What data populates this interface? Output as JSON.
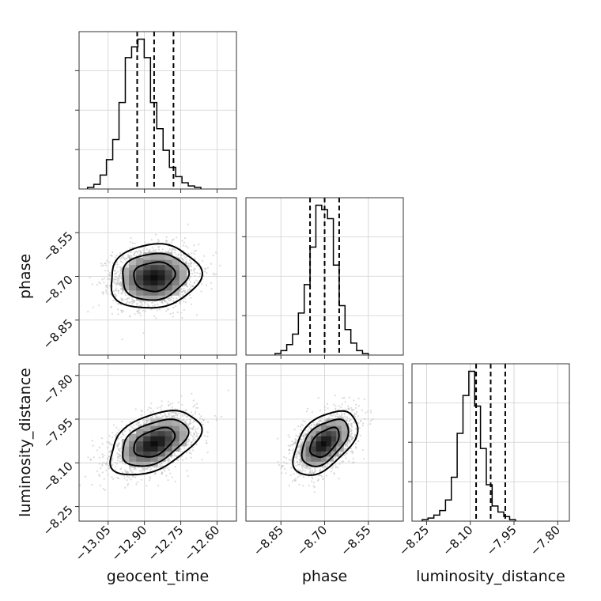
{
  "chart_data": {
    "type": "corner",
    "grid": true,
    "parameters": [
      {
        "name": "geocent_time",
        "axis_label": "geocent_time",
        "range": [
          -13.17,
          -12.52
        ],
        "ticks": [
          -13.05,
          -12.9,
          -12.75,
          -12.6
        ],
        "tick_labels": [
          "−13.05",
          "−12.90",
          "−12.75",
          "−12.60"
        ],
        "quantiles": [
          -12.93,
          -12.86,
          -12.78
        ],
        "histogram": {
          "bins_start": -13.135,
          "bin_width": 0.026,
          "counts": [
            1,
            3,
            9,
            19,
            32,
            56,
            85,
            92,
            97,
            85,
            56,
            39,
            25,
            14,
            8,
            4,
            2,
            1
          ]
        }
      },
      {
        "name": "phase",
        "axis_label": "phase",
        "range": [
          -8.97,
          -8.43
        ],
        "ticks": [
          -8.85,
          -8.7,
          -8.55
        ],
        "tick_labels": [
          "−8.85",
          "−8.70",
          "−8.55"
        ],
        "quantiles": [
          -8.75,
          -8.7,
          -8.65
        ],
        "histogram": {
          "bins_start": -8.87,
          "bin_width": 0.02,
          "counts": [
            1,
            3,
            7,
            14,
            28,
            47,
            72,
            100,
            97,
            91,
            60,
            33,
            17,
            8,
            3,
            1
          ]
        }
      },
      {
        "name": "luminosity_distance",
        "axis_label": "luminosity_distance",
        "range": [
          -8.3,
          -7.76
        ],
        "ticks": [
          -8.25,
          -8.1,
          -7.95,
          -7.8
        ],
        "tick_labels": [
          "−8.25",
          "−8.10",
          "−7.95",
          "−7.80"
        ],
        "quantiles": [
          -8.08,
          -8.03,
          -7.98
        ],
        "histogram": {
          "bins_start": -8.265,
          "bin_width": 0.02,
          "counts": [
            1,
            2,
            4,
            7,
            14,
            29,
            58,
            83,
            99,
            76,
            48,
            24,
            10,
            6,
            3,
            1
          ]
        }
      }
    ],
    "pairs": [
      {
        "x": "geocent_time",
        "y": "phase",
        "center": [
          -12.86,
          -8.7
        ],
        "sigma": [
          0.085,
          0.05
        ],
        "rho": 0.1,
        "levels": [
          1.0,
          1.6,
          2.2
        ]
      },
      {
        "x": "geocent_time",
        "y": "luminosity_distance",
        "center": [
          -12.86,
          -8.03
        ],
        "sigma": [
          0.085,
          0.05
        ],
        "rho": 0.45,
        "levels": [
          1.0,
          1.6,
          2.2
        ]
      },
      {
        "x": "phase",
        "y": "luminosity_distance",
        "center": [
          -8.7,
          -8.03
        ],
        "sigma": [
          0.05,
          0.05
        ],
        "rho": 0.5,
        "levels": [
          1.0,
          1.6,
          2.2
        ]
      }
    ]
  }
}
